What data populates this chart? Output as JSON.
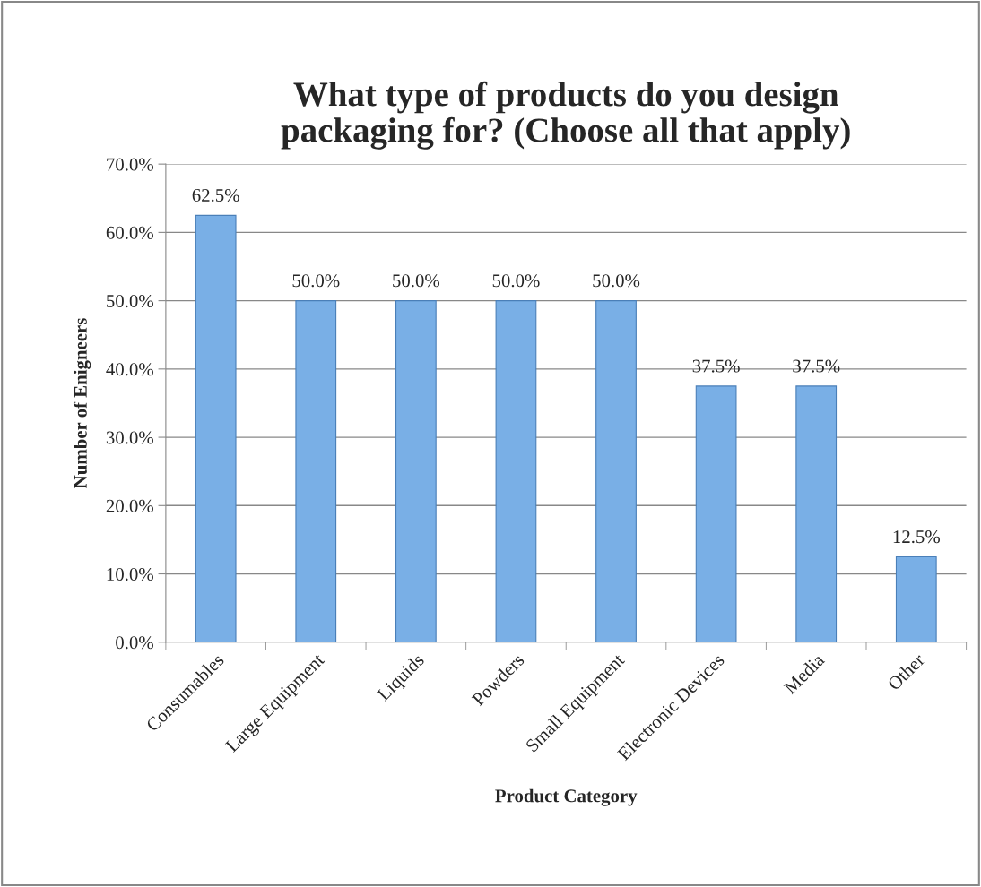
{
  "chart_data": {
    "type": "bar",
    "title": "What type of products do you design\npackaging for? (Choose all that apply)",
    "xlabel": "Product Category",
    "ylabel": "Number of Enigneers",
    "categories": [
      "Consumables",
      "Large Equipment",
      "Liquids",
      "Powders",
      "Small Equipment",
      "Electronic Devices",
      "Media",
      "Other"
    ],
    "values": [
      62.5,
      50.0,
      50.0,
      50.0,
      50.0,
      37.5,
      37.5,
      12.5
    ],
    "value_labels": [
      "62.5%",
      "50.0%",
      "50.0%",
      "50.0%",
      "50.0%",
      "37.5%",
      "37.5%",
      "12.5%"
    ],
    "color": "#79afe6",
    "ylim": [
      0,
      70
    ],
    "yticks": [
      {
        "value": 0,
        "label": "0.0%"
      },
      {
        "value": 10,
        "label": "10.0%"
      },
      {
        "value": 20,
        "label": "20.0%"
      },
      {
        "value": 30,
        "label": "30.0%"
      },
      {
        "value": 40,
        "label": "40.0%"
      },
      {
        "value": 50,
        "label": "50.0%"
      },
      {
        "value": 60,
        "label": "60.0%"
      },
      {
        "value": 70,
        "label": "70.0%"
      }
    ],
    "grid": "y"
  }
}
